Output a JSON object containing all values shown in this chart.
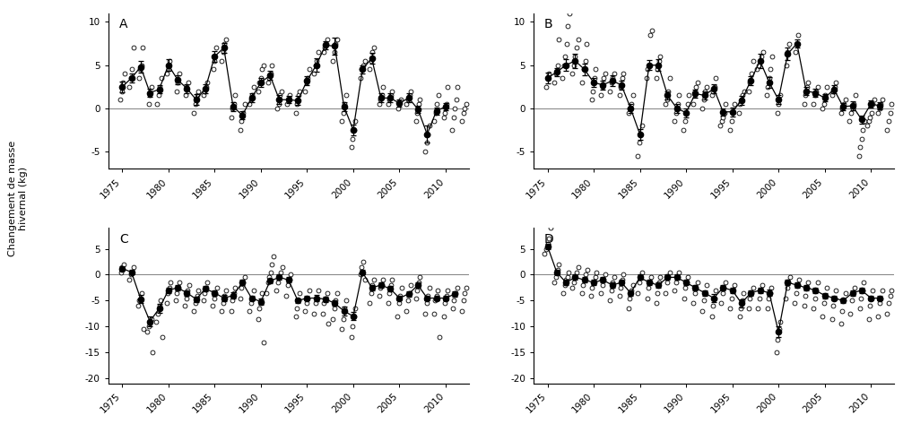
{
  "years": [
    1974,
    1975,
    1976,
    1977,
    1978,
    1979,
    1980,
    1981,
    1982,
    1983,
    1984,
    1985,
    1986,
    1987,
    1988,
    1989,
    1990,
    1991,
    1992,
    1993,
    1994,
    1995,
    1996,
    1997,
    1998,
    1999,
    2000,
    2001,
    2002,
    2003,
    2004,
    2005,
    2006,
    2007,
    2008,
    2009,
    2010,
    2011,
    2012
  ],
  "A_mean": [
    null,
    2.5,
    3.5,
    4.8,
    1.8,
    2.2,
    5.0,
    3.3,
    2.3,
    1.0,
    2.3,
    6.0,
    7.0,
    0.2,
    -0.8,
    1.2,
    3.0,
    3.8,
    1.0,
    1.0,
    0.9,
    3.2,
    5.0,
    7.3,
    7.2,
    0.2,
    -2.5,
    4.5,
    5.8,
    1.2,
    1.2,
    0.6,
    1.2,
    -0.1,
    -3.0,
    -0.3,
    0.2,
    null,
    null
  ],
  "A_se": [
    null,
    0.6,
    0.5,
    0.7,
    0.5,
    0.5,
    0.7,
    0.5,
    0.5,
    0.6,
    0.5,
    0.6,
    0.6,
    0.5,
    0.5,
    0.5,
    0.5,
    0.5,
    0.5,
    0.4,
    0.5,
    0.5,
    0.8,
    0.5,
    1.0,
    0.5,
    0.6,
    0.5,
    0.6,
    0.5,
    0.5,
    0.4,
    0.5,
    0.4,
    1.0,
    0.4,
    0.4,
    null,
    null
  ],
  "A_indiv": [
    [],
    [
      1.0,
      2.0,
      3.0,
      4.0
    ],
    [
      2.5,
      3.5,
      4.5,
      7.0
    ],
    [
      3.5,
      4.5,
      5.0,
      7.0
    ],
    [
      0.5,
      1.5,
      2.5
    ],
    [
      0.5,
      1.5,
      2.5,
      3.5
    ],
    [
      4.0,
      4.5,
      5.5
    ],
    [
      2.0,
      3.0,
      4.0
    ],
    [
      1.5,
      2.5,
      3.0
    ],
    [
      -0.5,
      0.5,
      1.5,
      2.0
    ],
    [
      1.5,
      2.0,
      2.5,
      3.0
    ],
    [
      4.5,
      5.5,
      7.0
    ],
    [
      5.5,
      6.5,
      7.5,
      8.0
    ],
    [
      -1.0,
      0.0,
      0.5,
      1.5
    ],
    [
      -2.5,
      -1.5,
      -0.5,
      0.5
    ],
    [
      0.5,
      1.0,
      1.5,
      2.5
    ],
    [
      2.0,
      3.0,
      3.5,
      4.5,
      5.0
    ],
    [
      3.0,
      3.5,
      4.0,
      5.0
    ],
    [
      0.0,
      0.5,
      1.5,
      2.0
    ],
    [
      0.5,
      1.0,
      1.5
    ],
    [
      -0.5,
      0.5,
      1.5,
      2.0
    ],
    [
      2.0,
      3.0,
      3.5,
      4.5
    ],
    [
      4.0,
      5.0,
      5.5,
      6.5
    ],
    [
      6.5,
      7.0,
      7.5,
      8.0
    ],
    [
      5.5,
      6.5,
      7.5,
      8.0
    ],
    [
      -1.5,
      -0.5,
      0.5,
      1.5
    ],
    [
      -4.5,
      -3.5,
      -2.5,
      -1.5
    ],
    [
      3.5,
      4.5,
      5.0,
      5.5
    ],
    [
      4.5,
      5.5,
      6.5,
      7.0
    ],
    [
      0.5,
      1.0,
      1.5,
      2.5
    ],
    [
      0.5,
      1.0,
      1.5,
      2.0
    ],
    [
      0.0,
      0.5,
      1.0
    ],
    [
      0.5,
      1.0,
      1.5,
      2.0
    ],
    [
      -1.5,
      -0.5,
      0.5,
      1.0
    ],
    [
      -5.0,
      -4.0,
      -3.0,
      -2.0
    ],
    [
      -1.5,
      -0.5,
      0.5,
      1.5
    ],
    [
      -1.0,
      -0.5,
      0.5,
      2.5
    ],
    [
      -2.5,
      -1.0,
      0.0,
      1.0,
      2.5
    ],
    [
      -1.5,
      -0.5,
      0.0,
      0.5
    ]
  ],
  "B_mean": [
    null,
    3.5,
    4.2,
    5.0,
    5.5,
    4.5,
    3.0,
    2.7,
    3.2,
    2.7,
    0.0,
    -3.0,
    5.0,
    5.0,
    1.5,
    0.0,
    -0.5,
    1.7,
    1.5,
    2.3,
    -0.4,
    -0.4,
    0.9,
    3.2,
    5.5,
    3.0,
    1.0,
    6.3,
    7.5,
    2.0,
    1.8,
    1.2,
    2.2,
    0.2,
    0.3,
    -1.3,
    0.5,
    0.3,
    null
  ],
  "B_se": [
    null,
    0.6,
    0.5,
    0.7,
    0.8,
    0.7,
    0.5,
    0.5,
    0.6,
    0.5,
    0.5,
    0.6,
    0.6,
    0.7,
    0.5,
    0.5,
    0.5,
    0.5,
    0.5,
    0.5,
    0.4,
    0.5,
    0.5,
    0.5,
    0.8,
    0.6,
    0.5,
    0.7,
    0.5,
    0.5,
    0.5,
    0.4,
    0.5,
    0.4,
    0.5,
    0.5,
    0.4,
    0.4,
    null
  ],
  "B_indiv": [
    [],
    [
      2.5,
      3.5,
      4.0
    ],
    [
      3.0,
      4.0,
      5.0,
      8.0
    ],
    [
      3.5,
      5.0,
      6.0,
      7.5,
      9.5,
      11.0
    ],
    [
      4.0,
      5.0,
      6.0,
      7.0,
      8.0
    ],
    [
      3.0,
      4.5,
      5.5,
      7.5
    ],
    [
      1.0,
      2.0,
      3.5,
      4.5
    ],
    [
      1.5,
      2.5,
      3.5,
      4.0
    ],
    [
      2.0,
      3.0,
      3.5,
      4.0
    ],
    [
      1.5,
      2.5,
      3.5,
      4.0
    ],
    [
      -0.5,
      0.0,
      0.5,
      1.5
    ],
    [
      -5.5,
      -4.0,
      -3.0,
      -2.0
    ],
    [
      3.5,
      4.5,
      5.0,
      8.5,
      9.0
    ],
    [
      3.5,
      4.5,
      5.5,
      6.0
    ],
    [
      0.5,
      1.0,
      2.0,
      3.5
    ],
    [
      -1.5,
      -0.5,
      0.5,
      1.5
    ],
    [
      -2.5,
      -1.5,
      -0.5,
      0.5,
      1.5
    ],
    [
      0.5,
      1.5,
      2.5,
      3.0
    ],
    [
      0.0,
      1.0,
      2.0,
      2.5
    ],
    [
      1.5,
      2.0,
      2.5,
      3.5
    ],
    [
      -2.0,
      -1.5,
      -1.0,
      -0.5,
      0.5
    ],
    [
      -2.5,
      -1.5,
      -0.5,
      0.5
    ],
    [
      -0.5,
      0.5,
      1.0,
      1.5,
      2.0
    ],
    [
      2.0,
      3.0,
      4.0,
      5.5
    ],
    [
      4.5,
      5.0,
      5.5,
      6.0,
      6.5
    ],
    [
      1.5,
      2.5,
      3.5,
      4.5,
      6.0
    ],
    [
      -0.5,
      0.5,
      1.5
    ],
    [
      5.0,
      6.5,
      7.5
    ],
    [
      6.5,
      7.5,
      8.5
    ],
    [
      0.5,
      1.5,
      2.5,
      3.0
    ],
    [
      0.5,
      1.5,
      2.0,
      2.5
    ],
    [
      0.0,
      0.5,
      1.5,
      2.5
    ],
    [
      1.5,
      2.0,
      2.5,
      3.0
    ],
    [
      -0.5,
      0.0,
      0.5,
      1.0
    ],
    [
      -1.5,
      -0.5,
      0.0,
      0.5,
      1.5
    ],
    [
      -5.5,
      -4.5,
      -3.5,
      -2.5,
      -1.5
    ],
    [
      -2.0,
      -1.5,
      -1.0,
      -0.5,
      0.5,
      1.0
    ],
    [
      -0.5,
      0.0,
      0.5,
      1.0
    ],
    [
      -2.5,
      -1.5,
      -0.5,
      0.5
    ]
  ],
  "C_mean": [
    null,
    1.2,
    0.5,
    -4.7,
    -9.0,
    -6.5,
    -3.0,
    -2.5,
    -3.5,
    -4.7,
    -2.7,
    -3.5,
    -4.5,
    -4.0,
    -1.5,
    -4.5,
    -5.2,
    -1.2,
    -0.5,
    -1.0,
    -5.0,
    -4.5,
    -4.5,
    -4.7,
    -5.5,
    -7.0,
    -8.0,
    0.5,
    -2.5,
    -2.0,
    -2.7,
    -4.5,
    -3.7,
    -2.0,
    -4.5,
    -4.5,
    -4.5,
    -3.7,
    null
  ],
  "C_se": [
    null,
    0.5,
    0.5,
    0.8,
    1.0,
    0.8,
    0.5,
    0.5,
    0.5,
    0.5,
    0.5,
    0.5,
    0.6,
    0.6,
    0.5,
    0.5,
    0.6,
    0.5,
    0.5,
    0.5,
    0.5,
    0.5,
    0.6,
    0.5,
    0.5,
    0.8,
    0.8,
    0.5,
    0.5,
    0.5,
    0.5,
    0.5,
    0.5,
    0.5,
    0.5,
    0.5,
    0.5,
    0.5,
    null
  ],
  "C_indiv": [
    [],
    [
      0.5,
      1.5,
      2.0
    ],
    [
      -1.0,
      0.0,
      0.5,
      1.5
    ],
    [
      -6.0,
      -5.0,
      -4.5,
      -3.5,
      -10.5
    ],
    [
      -11.0,
      -10.0,
      -9.5,
      -8.5,
      -15.0
    ],
    [
      -9.0,
      -7.5,
      -6.0,
      -5.0,
      -12.0
    ],
    [
      -5.5,
      -3.5,
      -2.5,
      -1.5
    ],
    [
      -5.0,
      -3.5,
      -2.5,
      -1.5
    ],
    [
      -6.0,
      -4.5,
      -3.0,
      -2.0
    ],
    [
      -7.0,
      -5.5,
      -4.0,
      -3.0
    ],
    [
      -5.0,
      -3.5,
      -2.5,
      -1.5
    ],
    [
      -6.0,
      -4.5,
      -3.5,
      -2.5
    ],
    [
      -7.0,
      -5.5,
      -4.0,
      -3.0
    ],
    [
      -7.0,
      -5.0,
      -3.5,
      -2.5
    ],
    [
      -4.5,
      -2.5,
      -1.5,
      -0.5
    ],
    [
      -7.0,
      -5.5,
      -4.5,
      -3.0
    ],
    [
      -8.5,
      -6.5,
      -5.0,
      -3.5,
      -13.0
    ],
    [
      -3.5,
      -1.5,
      -0.5,
      0.5,
      2.0,
      3.5
    ],
    [
      -3.0,
      -1.5,
      -0.5,
      0.5,
      1.5
    ],
    [
      -4.0,
      -2.0,
      -1.0,
      0.0
    ],
    [
      -8.0,
      -6.5,
      -5.0,
      -3.5
    ],
    [
      -7.0,
      -5.5,
      -4.5,
      -3.0
    ],
    [
      -7.5,
      -5.5,
      -4.5,
      -3.0
    ],
    [
      -7.5,
      -5.5,
      -4.5,
      -3.5,
      -9.5
    ],
    [
      -8.5,
      -6.5,
      -5.0,
      -3.5
    ],
    [
      -10.5,
      -8.5,
      -6.5,
      -5.0
    ],
    [
      -12.0,
      -10.0,
      -8.0,
      -6.5
    ],
    [
      0.0,
      1.5,
      2.5,
      -1.0
    ],
    [
      -5.5,
      -3.5,
      -2.0,
      -1.0
    ],
    [
      -4.0,
      -2.5,
      -2.0,
      -1.0
    ],
    [
      -5.5,
      -3.5,
      -2.0,
      -1.0
    ],
    [
      -8.0,
      -5.5,
      -4.0,
      -2.5
    ],
    [
      -7.0,
      -5.0,
      -3.5,
      -2.0
    ],
    [
      -4.5,
      -3.0,
      -1.5,
      -0.5
    ],
    [
      -7.5,
      -5.5,
      -4.0,
      -2.5
    ],
    [
      -7.5,
      -5.0,
      -4.0,
      -3.0,
      -12.0
    ],
    [
      -8.0,
      -5.5,
      -4.0,
      -3.0
    ],
    [
      -6.5,
      -5.0,
      -3.5,
      -2.5
    ],
    [
      -7.0,
      -5.0,
      -3.5,
      -2.5
    ]
  ],
  "D_mean": [
    null,
    5.5,
    0.5,
    -1.5,
    -0.5,
    -1.0,
    -1.5,
    -1.0,
    -2.0,
    -1.5,
    -3.5,
    -0.5,
    -1.5,
    -2.0,
    -0.5,
    -0.5,
    -1.5,
    -2.5,
    -3.5,
    -4.5,
    -2.5,
    -3.0,
    -5.5,
    -3.5,
    -3.0,
    -3.5,
    -11.0,
    -1.5,
    -2.0,
    -2.5,
    -3.0,
    -4.0,
    -4.5,
    -5.0,
    -3.5,
    -3.0,
    -4.5,
    -4.5,
    null
  ],
  "D_se": [
    null,
    0.5,
    0.5,
    0.5,
    0.5,
    0.5,
    0.5,
    0.5,
    0.5,
    0.5,
    0.5,
    0.5,
    0.5,
    0.5,
    0.5,
    0.5,
    0.5,
    0.5,
    0.5,
    0.8,
    0.5,
    0.5,
    0.8,
    0.5,
    0.5,
    0.6,
    1.0,
    0.5,
    0.5,
    0.5,
    0.5,
    0.5,
    0.5,
    0.5,
    0.5,
    0.5,
    0.5,
    0.5,
    null
  ],
  "D_indiv": [
    [],
    [
      4.0,
      5.0,
      6.0,
      7.0,
      9.0
    ],
    [
      -1.5,
      -0.5,
      1.0,
      2.0
    ],
    [
      -3.5,
      -2.0,
      -1.0,
      -0.5,
      0.5
    ],
    [
      -2.5,
      -1.5,
      -0.5,
      0.5,
      1.5
    ],
    [
      -3.5,
      -2.0,
      -1.0,
      0.0,
      1.0
    ],
    [
      -4.0,
      -2.5,
      -1.5,
      -0.5,
      0.5
    ],
    [
      -3.5,
      -2.0,
      -1.0,
      0.0
    ],
    [
      -5.0,
      -3.0,
      -1.5,
      -0.5
    ],
    [
      -4.0,
      -2.5,
      -1.0,
      0.0
    ],
    [
      -6.5,
      -4.5,
      -3.0,
      -2.0
    ],
    [
      -3.5,
      -1.5,
      -0.5,
      0.5
    ],
    [
      -4.5,
      -2.5,
      -1.5,
      -0.5
    ],
    [
      -5.5,
      -3.5,
      -1.5,
      -0.5
    ],
    [
      -3.5,
      -1.5,
      -0.5,
      0.5
    ],
    [
      -3.0,
      -1.5,
      -0.5,
      0.5
    ],
    [
      -4.5,
      -2.5,
      -1.5,
      -0.5
    ],
    [
      -5.5,
      -3.5,
      -2.5,
      -1.5
    ],
    [
      -7.0,
      -5.0,
      -3.5,
      -2.0
    ],
    [
      -8.0,
      -6.0,
      -4.5,
      -3.0
    ],
    [
      -5.5,
      -3.5,
      -2.5,
      -1.5
    ],
    [
      -6.5,
      -4.5,
      -3.0,
      -2.0
    ],
    [
      -8.0,
      -6.5,
      -5.0,
      -3.5
    ],
    [
      -6.5,
      -4.5,
      -3.5,
      -2.5
    ],
    [
      -6.5,
      -4.5,
      -3.0,
      -2.0
    ],
    [
      -6.5,
      -4.5,
      -3.5,
      -2.5
    ],
    [
      -15.0,
      -12.5,
      -10.5,
      -9.0
    ],
    [
      -4.5,
      -2.5,
      -1.5,
      -0.5
    ],
    [
      -5.5,
      -3.5,
      -2.0,
      -1.0
    ],
    [
      -6.0,
      -4.0,
      -2.5,
      -1.5
    ],
    [
      -6.5,
      -4.5,
      -3.0,
      -1.5
    ],
    [
      -8.0,
      -5.5,
      -4.0,
      -2.5
    ],
    [
      -8.5,
      -6.0,
      -4.5,
      -3.0
    ],
    [
      -9.5,
      -7.0,
      -5.0,
      -3.5
    ],
    [
      -7.5,
      -5.0,
      -3.5,
      -2.5
    ],
    [
      -6.5,
      -4.5,
      -3.0,
      -1.5
    ],
    [
      -8.5,
      -6.0,
      -4.5,
      -3.0
    ],
    [
      -8.0,
      -5.5,
      -4.5,
      -3.0
    ],
    [
      -7.5,
      -5.5,
      -4.0,
      -3.0
    ]
  ],
  "panel_labels": [
    "A",
    "B",
    "C",
    "D"
  ],
  "xlim": [
    1973.5,
    2012.5
  ],
  "xticks": [
    1975,
    1980,
    1985,
    1990,
    1995,
    2000,
    2005,
    2010
  ],
  "AB_ylim": [
    -7,
    11
  ],
  "AB_yticks": [
    -5,
    0,
    5,
    10
  ],
  "CD_ylim": [
    -21,
    9
  ],
  "CD_yticks": [
    -20,
    -15,
    -10,
    -5,
    0,
    5
  ],
  "ylabel": "Changement de masse\nhivernal (kg)",
  "face_color": "white"
}
